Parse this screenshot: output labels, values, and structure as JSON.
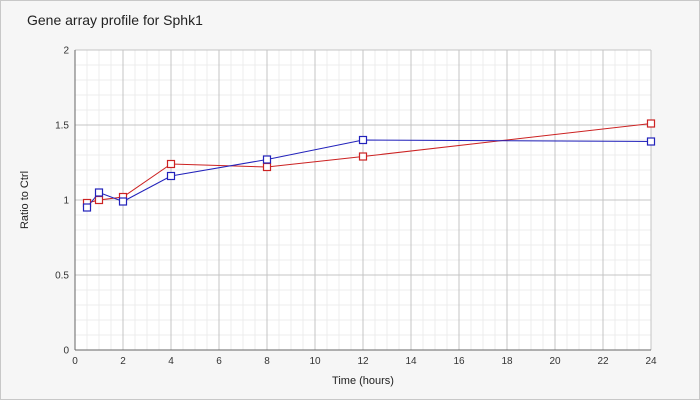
{
  "chart_data": {
    "type": "line",
    "title": "Gene array profile for Sphk1",
    "xlabel": "Time (hours)",
    "ylabel": "Ratio to Ctrl",
    "xlim": [
      0,
      24
    ],
    "ylim": [
      0,
      2
    ],
    "xticks": [
      0,
      2,
      4,
      6,
      8,
      10,
      12,
      14,
      16,
      18,
      20,
      22,
      24
    ],
    "yticks": [
      0,
      0.5,
      1,
      1.5,
      2
    ],
    "ytick_labels": [
      "0",
      "0.5",
      "1",
      "1.5",
      "2"
    ],
    "grid": true,
    "legend": "none",
    "series": [
      {
        "color": "#cc2222",
        "marker": "square",
        "x": [
          0.5,
          1,
          2,
          4,
          8,
          12,
          24
        ],
        "y": [
          0.98,
          1.0,
          1.02,
          1.24,
          1.22,
          1.29,
          1.51
        ]
      },
      {
        "color": "#2222bb",
        "marker": "square",
        "x": [
          0.5,
          1,
          2,
          4,
          8,
          12,
          24
        ],
        "y": [
          0.95,
          1.05,
          0.99,
          1.16,
          1.27,
          1.4,
          1.39
        ]
      }
    ]
  }
}
